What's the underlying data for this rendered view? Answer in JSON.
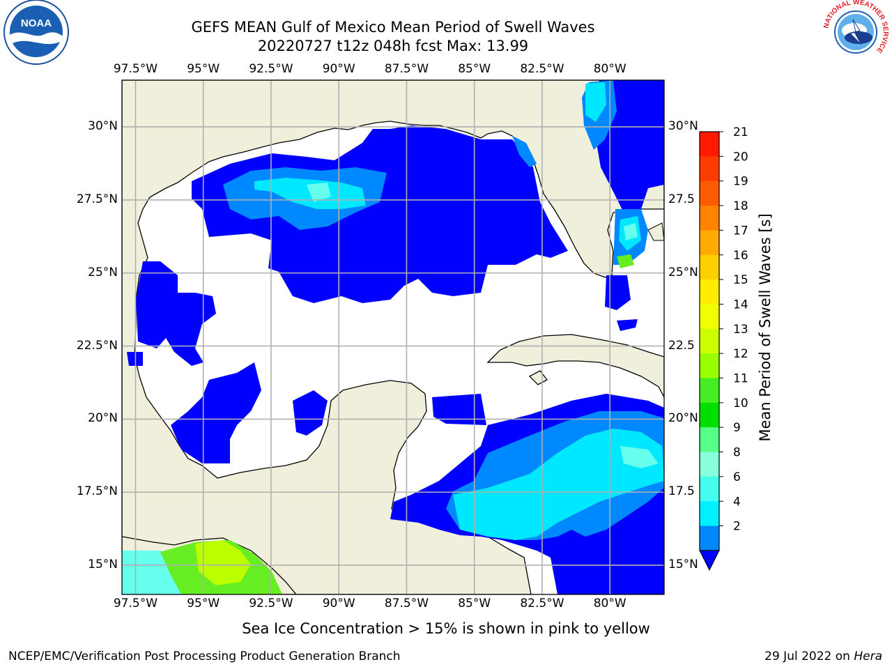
{
  "title": {
    "line1": "GEFS MEAN Gulf of Mexico Mean Period of Swell Waves",
    "line2": "20220727 t12z 048h fcst   Max: 13.99"
  },
  "map": {
    "lon_labels": [
      "97.5°W",
      "95°W",
      "92.5°W",
      "90°W",
      "87.5°W",
      "85°W",
      "82.5°W",
      "80°W"
    ],
    "lat_left_labels": [
      "30°N",
      "27.5°N",
      "25°N",
      "22.5°N",
      "20°N",
      "17.5°N",
      "15°N"
    ],
    "lat_right_labels": [
      "30°N",
      "27.5",
      "25°N",
      "22.5",
      "20°N",
      "17.5",
      "15°N"
    ],
    "lon_values": [
      -97.5,
      -95,
      -92.5,
      -90,
      -87.5,
      -85,
      -82.5,
      -80
    ],
    "lat_values": [
      30,
      27.5,
      25,
      22.5,
      20,
      17.5,
      15
    ],
    "extent": {
      "lon": [
        -98,
        -78
      ],
      "lat": [
        14,
        31.6
      ]
    },
    "colors": {
      "land": "#efefdc",
      "water": "#ffffff",
      "grid": "#b0b0b0",
      "coast": "#000000"
    }
  },
  "colorbar": {
    "label": "Mean Period of Swell Waves [s]",
    "ticks": [
      21,
      20,
      19,
      18,
      17,
      16,
      15,
      14,
      13,
      12,
      11,
      10,
      9,
      8,
      6,
      4,
      2
    ],
    "colors": [
      "#ff1a00",
      "#ff3c00",
      "#ff5c00",
      "#ff8200",
      "#ffaa00",
      "#ffd000",
      "#ffee00",
      "#f0ff00",
      "#ccff00",
      "#99ff00",
      "#44ee22",
      "#00e000",
      "#55ff88",
      "#88ffdd",
      "#44ffee",
      "#00f0ff",
      "#0088ff"
    ],
    "extend_color": "#0000ff"
  },
  "swell_regions": [
    {
      "name": "period-2-4s",
      "color": "#0000ff"
    },
    {
      "name": "period-4-6s",
      "color": "#0088ff"
    },
    {
      "name": "period-6-8s",
      "color": "#00e8ff"
    },
    {
      "name": "period-8-9s",
      "color": "#66ffee"
    },
    {
      "name": "period-10-12s",
      "color": "#66ee22"
    },
    {
      "name": "period-12-14s",
      "color": "#bbff00"
    }
  ],
  "logos": {
    "left": "NOAA",
    "right_ring": "NATIONAL WEATHER SERVICE"
  },
  "note": "Sea Ice Concentration > 15% is shown in pink to yellow",
  "footer": {
    "left": "NCEP/EMC/Verification Post Processing Product Generation Branch",
    "date": "29 Jul 2022 on ",
    "machine": "Hera"
  }
}
